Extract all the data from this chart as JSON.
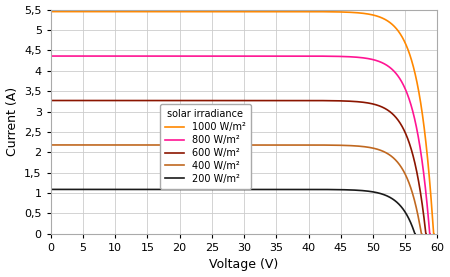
{
  "title": "",
  "xlabel": "Voltage (V)",
  "ylabel": "Current (A)",
  "xlim": [
    0,
    60
  ],
  "ylim": [
    0,
    5.5
  ],
  "yticks": [
    0,
    0.5,
    1,
    1.5,
    2,
    2.5,
    3,
    3.5,
    4,
    4.5,
    5,
    5.5
  ],
  "xticks": [
    0,
    5,
    10,
    15,
    20,
    25,
    30,
    35,
    40,
    45,
    50,
    55,
    60
  ],
  "curves": [
    {
      "label": "1000 W/m²",
      "color": "#FF8800",
      "isc": 5.45,
      "voc": 59.4,
      "n_factor": 4.5
    },
    {
      "label": "800 W/m²",
      "color": "#FF1493",
      "isc": 4.36,
      "voc": 58.8,
      "n_factor": 4.5
    },
    {
      "label": "600 W/m²",
      "color": "#8B1500",
      "isc": 3.27,
      "voc": 58.2,
      "n_factor": 4.5
    },
    {
      "label": "400 W/m²",
      "color": "#C06820",
      "isc": 2.18,
      "voc": 57.5,
      "n_factor": 4.5
    },
    {
      "label": "200 W/m²",
      "color": "#1a1a1a",
      "isc": 1.09,
      "voc": 56.5,
      "n_factor": 4.5
    }
  ],
  "legend_title": "solar irradiance",
  "background_color": "#ffffff",
  "grid_color": "#cccccc"
}
